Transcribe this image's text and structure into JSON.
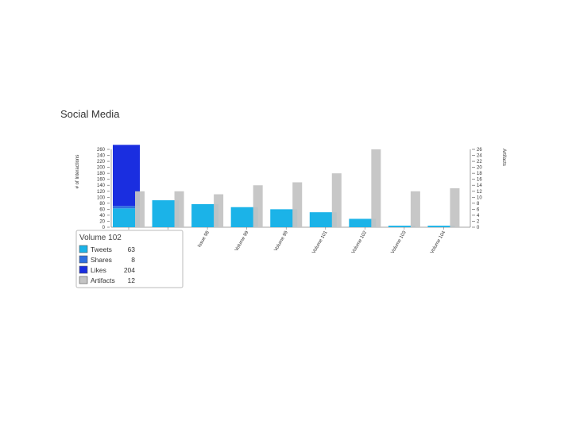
{
  "page": {
    "title": "Social Media"
  },
  "colors": {
    "tweets": "#1bb3e8",
    "shares": "#2f6fe0",
    "likes": "#1a2ee0",
    "artifacts": "#c4c4c4"
  },
  "chart_data": {
    "type": "bar",
    "title": "Social Media",
    "ylabel": "# of Interactions",
    "y2label": "Artifacts",
    "ylim": [
      0,
      260
    ],
    "y2lim": [
      0,
      26
    ],
    "yticks": [
      0,
      20,
      40,
      60,
      80,
      100,
      120,
      140,
      160,
      180,
      200,
      220,
      240,
      260
    ],
    "y2ticks": [
      0,
      2,
      4,
      6,
      8,
      10,
      12,
      14,
      16,
      18,
      20,
      22,
      24,
      26
    ],
    "categories": [
      "Volume 102",
      "",
      "Issue 98",
      "Volume 99",
      "Volume 99",
      "Volume 101",
      "Volume 102",
      "Volume 103",
      "Volume 104"
    ],
    "series": [
      {
        "name": "Tweets",
        "axis": "left",
        "values": [
          63,
          90,
          77,
          67,
          60,
          50,
          28,
          5,
          5
        ]
      },
      {
        "name": "Shares",
        "axis": "left",
        "values": [
          8,
          0,
          0,
          0,
          0,
          0,
          0,
          0,
          0
        ]
      },
      {
        "name": "Likes",
        "axis": "left",
        "values": [
          204,
          0,
          0,
          0,
          0,
          0,
          0,
          0,
          0
        ]
      },
      {
        "name": "Artifacts",
        "axis": "right",
        "values": [
          12,
          12,
          11,
          14,
          15,
          18,
          26,
          12,
          13
        ]
      }
    ],
    "grid": false,
    "tooltip": {
      "title": "Volume 102",
      "rows": [
        {
          "name": "Tweets",
          "value": "63"
        },
        {
          "name": "Shares",
          "value": "8"
        },
        {
          "name": "Likes",
          "value": "204"
        },
        {
          "name": "Artifacts",
          "value": "12"
        }
      ]
    }
  }
}
